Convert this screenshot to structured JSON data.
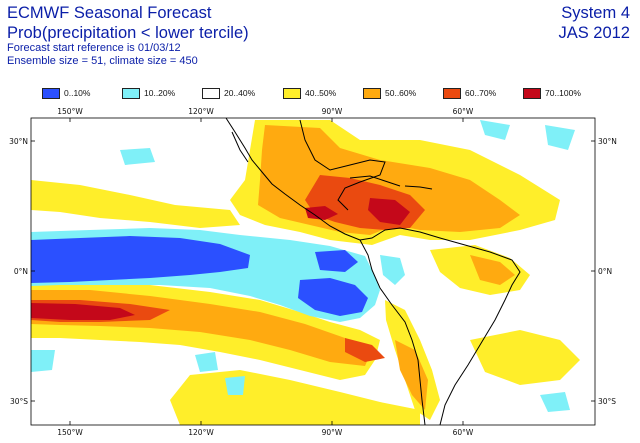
{
  "header": {
    "title": "ECMWF Seasonal Forecast",
    "subtitle": "Prob(precipitation < lower tercile)",
    "start_reference": "Forecast start reference is 01/03/12",
    "ensemble": "Ensemble size = 51, climate size = 450",
    "system": "System 4",
    "period": "JAS 2012"
  },
  "legend": [
    {
      "label": "0..10%",
      "color": "#2b50ff"
    },
    {
      "label": "10..20%",
      "color": "#7ff0f8"
    },
    {
      "label": "20..40%",
      "color": "#ffffff"
    },
    {
      "label": "40..50%",
      "color": "#ffee2a"
    },
    {
      "label": "50..60%",
      "color": "#ffaa10"
    },
    {
      "label": "60..70%",
      "color": "#ea4a10"
    },
    {
      "label": "70..100%",
      "color": "#c4081a"
    }
  ],
  "map": {
    "lon_labels": [
      "150°W",
      "120°W",
      "90°W",
      "60°W"
    ],
    "lat_labels": [
      "30°N",
      "0°N",
      "30°S"
    ],
    "coastline_color": "#000000"
  }
}
